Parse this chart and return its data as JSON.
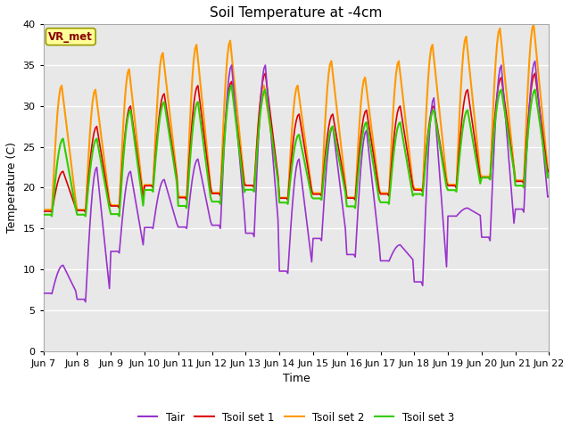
{
  "title": "Soil Temperature at -4cm",
  "xlabel": "Time",
  "ylabel": "Temperature (C)",
  "ylim": [
    0,
    40
  ],
  "xlim": [
    0,
    360
  ],
  "plot_bg_color": "#e8e8e8",
  "fig_bg_color": "#ffffff",
  "colors": {
    "Tair": "#9933cc",
    "Tsoil1": "#dd0000",
    "Tsoil2": "#ff9900",
    "Tsoil3": "#33cc00"
  },
  "legend_labels": [
    "Tair",
    "Tsoil set 1",
    "Tsoil set 2",
    "Tsoil set 3"
  ],
  "annotation": "VR_met",
  "annotation_bg": "#ffff99",
  "annotation_border": "#999900",
  "tick_labels": [
    "Jun 7",
    "Jun 8",
    " Jun 9",
    "Jun 10",
    "Jun 11",
    "Jun 12",
    "Jun 13",
    "Jun 14",
    "Jun 15",
    "Jun 16",
    "Jun 17",
    "Jun 18",
    "Jun 19",
    "Jun 20",
    "Jun 21",
    "Jun 22"
  ],
  "tick_positions": [
    0,
    24,
    48,
    72,
    96,
    120,
    144,
    168,
    192,
    216,
    240,
    264,
    288,
    312,
    336,
    360
  ],
  "yticks": [
    0,
    5,
    10,
    15,
    20,
    25,
    30,
    35,
    40
  ]
}
